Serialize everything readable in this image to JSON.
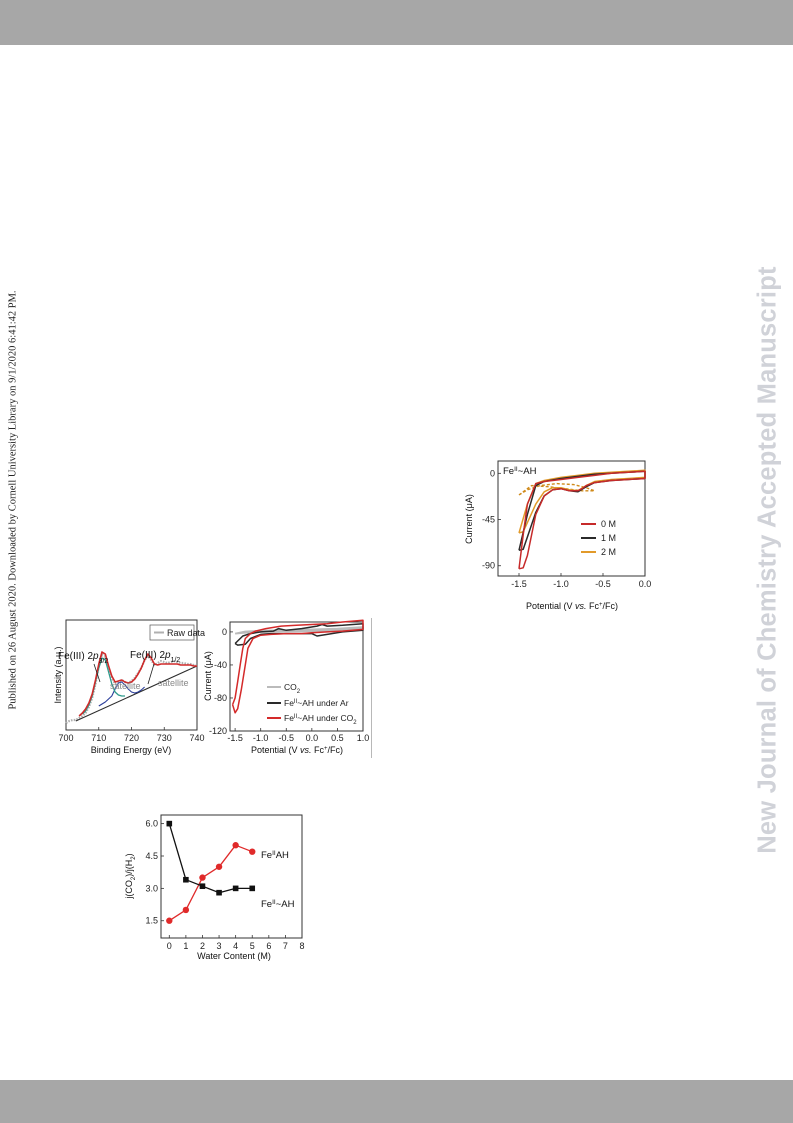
{
  "header_bar": {
    "color": "#a7a7a7"
  },
  "footer_bar": {
    "color": "#a7a7a7"
  },
  "side_text": {
    "published": "Published on 26 August 2020. Downloaded by Cornell University Library on 9/1/2020 6:41:42 PM.",
    "journal": "New Journal of Chemistry Accepted Manuscript"
  },
  "chart_data": [
    {
      "type": "line",
      "ylabel": "Intensity (a.u.)",
      "xlabel": "Binding Energy (eV)",
      "xlim": [
        700,
        740
      ],
      "x_ticks": [
        "700",
        "710",
        "720",
        "730",
        "740"
      ],
      "legend": {
        "placement": "top-right",
        "entries": [
          "Raw data"
        ]
      },
      "annotations": [
        {
          "main": "Fe(III) 2",
          "italic": "p",
          "sub": "3/2"
        },
        {
          "main": "Fe(III) 2",
          "italic": "p",
          "sub": "1/2"
        },
        {
          "text": "satellite"
        },
        {
          "text": "satellite"
        }
      ],
      "series_colors": {
        "raw": "#b0b0b0",
        "envelope": "#d02a2a",
        "peak1": "#2e9a8c",
        "peak2": "#2b3e9a",
        "background": "#2c2c2c"
      },
      "raw": {
        "x": [
          700,
          701,
          702,
          703,
          704,
          705,
          706,
          707,
          708,
          709,
          710,
          711,
          712,
          713,
          714,
          715,
          716,
          717,
          718,
          719,
          720,
          721,
          722,
          723,
          724,
          725,
          726,
          727,
          728,
          729,
          730,
          731,
          732,
          733,
          734,
          735,
          736,
          737,
          738,
          739,
          740
        ],
        "y": [
          0.03,
          0.05,
          0.06,
          0.06,
          0.08,
          0.1,
          0.13,
          0.19,
          0.28,
          0.42,
          0.6,
          0.72,
          0.7,
          0.58,
          0.48,
          0.42,
          0.44,
          0.46,
          0.44,
          0.43,
          0.45,
          0.48,
          0.53,
          0.58,
          0.66,
          0.7,
          0.66,
          0.61,
          0.63,
          0.65,
          0.64,
          0.63,
          0.64,
          0.65,
          0.64,
          0.63,
          0.63,
          0.62,
          0.62,
          0.61,
          0.6
        ]
      },
      "envelope": {
        "x": [
          704,
          705,
          706,
          707,
          708,
          709,
          710,
          711,
          712,
          713,
          714,
          715,
          716,
          717,
          718,
          719,
          720,
          721,
          722,
          723,
          724,
          725,
          726,
          727,
          728,
          729,
          730,
          731,
          732,
          733,
          734,
          735,
          736,
          737,
          738,
          739,
          740
        ],
        "y": [
          0.1,
          0.13,
          0.17,
          0.23,
          0.32,
          0.46,
          0.62,
          0.74,
          0.72,
          0.6,
          0.5,
          0.44,
          0.45,
          0.46,
          0.44,
          0.43,
          0.44,
          0.47,
          0.52,
          0.58,
          0.66,
          0.72,
          0.68,
          0.62,
          0.61,
          0.62,
          0.62,
          0.62,
          0.62,
          0.62,
          0.62,
          0.61,
          0.61,
          0.61,
          0.61,
          0.6,
          0.6
        ]
      },
      "peak1": {
        "x": [
          705,
          706,
          707,
          708,
          709,
          710,
          711,
          712,
          713,
          714,
          715,
          716,
          717,
          718
        ],
        "y": [
          0.12,
          0.15,
          0.21,
          0.3,
          0.44,
          0.58,
          0.68,
          0.66,
          0.54,
          0.42,
          0.34,
          0.31,
          0.3,
          0.3
        ]
      },
      "peak2": {
        "x": [
          710,
          712,
          714,
          715,
          716,
          717,
          718,
          719,
          720,
          721,
          722,
          723,
          724
        ],
        "y": [
          0.2,
          0.24,
          0.3,
          0.37,
          0.43,
          0.44,
          0.41,
          0.37,
          0.34,
          0.33,
          0.34,
          0.36,
          0.39
        ]
      },
      "background": {
        "x": [
          703,
          740
        ],
        "y": [
          0.05,
          0.6
        ]
      }
    },
    {
      "type": "line",
      "ylabel": "Current (μA)",
      "xlabel_main": "Potential (V ",
      "xlabel_vs": "vs.",
      "xlabel_fc": " Fc",
      "xlabel_sup": "+",
      "xlabel_end": "/Fc)",
      "xlim": [
        -1.6,
        1.0
      ],
      "ylim": [
        -120,
        12
      ],
      "x_ticks": [
        "-1.5",
        "-1.0",
        "-0.5",
        "0.0",
        "0.5",
        "1.0"
      ],
      "y_ticks": [
        "0",
        "-40",
        "-80",
        "-120"
      ],
      "legend_placement": "bottom-right",
      "legend": [
        {
          "main": "CO",
          "sub": "2",
          "post": "",
          "color": "#bbbbbb"
        },
        {
          "main": "Fe",
          "sup": "II",
          "post": "~AH under Ar",
          "color": "#2a2a2a"
        },
        {
          "main": "Fe",
          "sup": "II",
          "post": "~AH under CO",
          "sub": "2",
          "color": "#d42a2a"
        }
      ],
      "series": [
        {
          "name": "CO2",
          "color": "#bbbbbb",
          "x": [
            -1.5,
            -1.3,
            -1.0,
            -0.5,
            0.0,
            0.5,
            1.0,
            1.0,
            0.5,
            0.0,
            -0.5,
            -1.0,
            -1.3,
            -1.5
          ],
          "y": [
            -2,
            -1,
            0,
            0.5,
            1,
            2,
            4,
            6,
            4,
            3,
            2,
            1.5,
            0.5,
            -2
          ]
        },
        {
          "name": "FeII~AH under Ar",
          "color": "#2a2a2a",
          "x": [
            -1.5,
            -1.45,
            -1.3,
            -1.2,
            -1.0,
            -0.8,
            -0.6,
            -0.3,
            0.0,
            0.1,
            0.3,
            0.6,
            1.0,
            1.0,
            0.6,
            0.3,
            0.2,
            0.1,
            -0.2,
            -0.5,
            -0.65,
            -0.75,
            -1.0,
            -1.2,
            -1.35,
            -1.5
          ],
          "y": [
            -14,
            -16,
            -15,
            -8,
            -3,
            -2,
            -2,
            -2,
            -2,
            -5,
            -3,
            0,
            2,
            10,
            8,
            7,
            9,
            7,
            4,
            2,
            4,
            1,
            0,
            -2,
            -5,
            -14
          ]
        },
        {
          "name": "FeII~AH under CO2",
          "color": "#d42a2a",
          "x": [
            -1.55,
            -1.5,
            -1.45,
            -1.38,
            -1.3,
            -1.25,
            -1.15,
            -1.0,
            -0.8,
            -0.5,
            -0.2,
            0.0,
            0.3,
            0.6,
            1.0,
            1.0,
            0.6,
            0.3,
            0.0,
            -0.3,
            -0.6,
            -0.9,
            -1.1,
            -1.2,
            -1.3,
            -1.35,
            -1.4,
            -1.45,
            -1.5,
            -1.55
          ],
          "y": [
            -88,
            -98,
            -93,
            -70,
            -40,
            -20,
            -8,
            -4,
            -3,
            -2,
            -2,
            -1,
            0,
            1,
            3,
            14,
            12,
            10,
            9,
            8,
            7,
            4,
            1,
            -2,
            -8,
            -20,
            -40,
            -60,
            -80,
            -88
          ]
        }
      ]
    },
    {
      "type": "line",
      "ylabel": "Current (μA)",
      "xlabel_main": "Potential (V ",
      "xlabel_vs": "vs.",
      "xlabel_fc": " Fc",
      "xlabel_sup": "+",
      "xlabel_end": "/Fc)",
      "xlim": [
        -1.75,
        0.0
      ],
      "ylim": [
        -100,
        12
      ],
      "x_ticks": [
        "-1.5",
        "-1.0",
        "-0.5",
        "0.0"
      ],
      "y_ticks": [
        "0",
        "-45",
        "-90"
      ],
      "label": {
        "main": "Fe",
        "sup": "II",
        "post": "~AH"
      },
      "legend_placement": "right",
      "legend": [
        {
          "name": "0 M",
          "color": "#c62a2a"
        },
        {
          "name": "1 M",
          "color": "#2a2a2a"
        },
        {
          "name": "2 M",
          "color": "#e29a2a"
        }
      ],
      "dashed": {
        "color": "#d08a1a",
        "x": [
          -1.5,
          -1.4,
          -1.25,
          -1.05,
          -0.85,
          -0.7,
          -0.6,
          -0.75,
          -0.95,
          -1.15,
          -1.35,
          -1.5
        ],
        "y": [
          -21,
          -16,
          -12,
          -10,
          -11,
          -14,
          -17,
          -17,
          -15,
          -13,
          -12,
          -21
        ]
      },
      "series": [
        {
          "name": "0 M",
          "color": "#c62a2a",
          "x": [
            -1.5,
            -1.45,
            -1.4,
            -1.35,
            -1.3,
            -1.2,
            -1.1,
            -1.0,
            -0.9,
            -0.8,
            -0.75,
            -0.7,
            -0.6,
            -0.4,
            -0.2,
            0.0,
            0.0,
            -0.2,
            -0.4,
            -0.6,
            -0.8,
            -1.0,
            -1.1,
            -1.2,
            -1.3,
            -1.4,
            -1.45,
            -1.5
          ],
          "y": [
            -93,
            -92,
            -80,
            -60,
            -40,
            -22,
            -16,
            -15,
            -17,
            -17,
            -15,
            -12,
            -9,
            -7,
            -6,
            -5,
            2,
            1,
            0,
            -2,
            -4,
            -6,
            -7,
            -8,
            -10,
            -30,
            -60,
            -93
          ]
        },
        {
          "name": "1 M",
          "color": "#2a2a2a",
          "x": [
            -1.5,
            -1.45,
            -1.4,
            -1.3,
            -1.2,
            -1.1,
            -1.0,
            -0.9,
            -0.8,
            -0.7,
            -0.6,
            -0.4,
            -0.2,
            0.0,
            0.0,
            -0.2,
            -0.4,
            -0.6,
            -0.8,
            -1.0,
            -1.2,
            -1.3,
            -1.4,
            -1.5
          ],
          "y": [
            -75,
            -74,
            -62,
            -38,
            -22,
            -16,
            -15,
            -17,
            -18,
            -13,
            -9,
            -7,
            -6,
            -5,
            2,
            1,
            0,
            -1,
            -3,
            -5,
            -8,
            -12,
            -40,
            -75
          ]
        },
        {
          "name": "2 M",
          "color": "#e29a2a",
          "x": [
            -1.5,
            -1.45,
            -1.4,
            -1.3,
            -1.2,
            -1.1,
            -1.0,
            -0.9,
            -0.8,
            -0.7,
            -0.6,
            -0.4,
            -0.2,
            0.0,
            0.0,
            -0.2,
            -0.4,
            -0.6,
            -0.8,
            -1.0,
            -1.2,
            -1.3,
            -1.4,
            -1.5
          ],
          "y": [
            -58,
            -57,
            -48,
            -30,
            -18,
            -14,
            -14,
            -16,
            -17,
            -12,
            -8,
            -6,
            -5,
            -4,
            3,
            2,
            1,
            0,
            -2,
            -4,
            -7,
            -10,
            -30,
            -58
          ]
        }
      ]
    },
    {
      "type": "line",
      "ylabel_main": "j(CO",
      "ylabel_sub1": "2",
      "ylabel_mid": ")/j(H",
      "ylabel_sub2": "2",
      "ylabel_end": ")",
      "xlabel": "Water Content (M)",
      "xlim": [
        -0.5,
        8
      ],
      "ylim": [
        0.7,
        6.4
      ],
      "x_ticks": [
        "0",
        "1",
        "2",
        "3",
        "4",
        "5",
        "6",
        "7",
        "8"
      ],
      "y_ticks": [
        "1.5",
        "3.0",
        "4.5",
        "6.0"
      ],
      "series": [
        {
          "name": "FeIIAH",
          "label_main": "Fe",
          "label_sup": "II",
          "label_post": "AH",
          "color": "#e02a2a",
          "marker": "circle",
          "x": [
            0,
            1,
            2,
            3,
            4,
            5
          ],
          "y": [
            1.5,
            2.0,
            3.5,
            4.0,
            5.0,
            4.7
          ]
        },
        {
          "name": "FeII~AH",
          "label_main": "Fe",
          "label_sup": "II",
          "label_post": "~AH",
          "color": "#111111",
          "marker": "square",
          "x": [
            0,
            1,
            2,
            3,
            4,
            5
          ],
          "y": [
            6.0,
            3.4,
            3.1,
            2.8,
            3.0,
            3.0
          ]
        }
      ]
    }
  ]
}
